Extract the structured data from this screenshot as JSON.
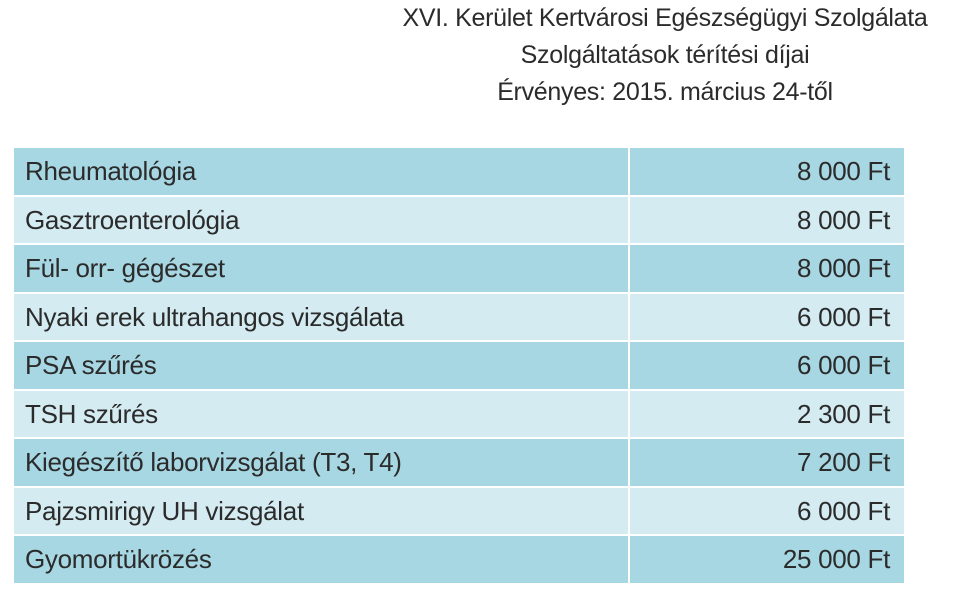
{
  "header": {
    "lines": [
      "XVI. Kerület Kertvárosi Egészségügyi Szolgálata",
      "Szolgáltatások térítési díjai",
      "Érvényes: 2015. március 24-től"
    ]
  },
  "table": {
    "rows": [
      [
        "Rheumatológia",
        "8 000 Ft"
      ],
      [
        "Gasztroenterológia",
        "8 000 Ft"
      ],
      [
        "Fül- orr- gégészet",
        "8 000 Ft"
      ],
      [
        "Nyaki erek ultrahangos vizsgálata",
        "6 000 Ft"
      ],
      [
        "PSA szűrés",
        "6 000 Ft"
      ],
      [
        "TSH szűrés",
        "2 300 Ft"
      ],
      [
        "Kiegészítő laborvizsgálat (T3, T4)",
        "7 200 Ft"
      ],
      [
        "Pajzsmirigy UH vizsgálat",
        "6 000 Ft"
      ],
      [
        "Gyomortükrözés",
        "25 000 Ft"
      ]
    ]
  }
}
